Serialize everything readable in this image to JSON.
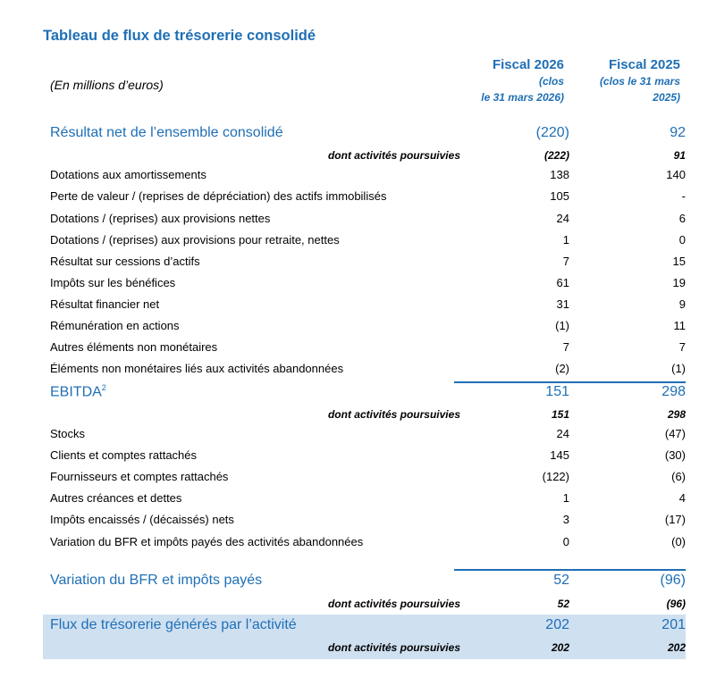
{
  "title": "Tableau de flux de trésorerie consolidé",
  "unit_note": "(En millions d’euros)",
  "columns": [
    {
      "year": "Fiscal 2026",
      "sub1": "(clos",
      "sub2": "le 31 mars 2026)"
    },
    {
      "year": "Fiscal 2025",
      "sub1": "(clos le 31 mars",
      "sub2": "2025)"
    }
  ],
  "rows": [
    {
      "label": "Résultat net de l’ensemble consolidé",
      "v1": "(220)",
      "v2": "92"
    },
    {
      "label": "dont activités poursuivies",
      "v1": "(222)",
      "v2": "91"
    },
    {
      "label": "Dotations aux amortissements",
      "v1": "138",
      "v2": "140"
    },
    {
      "label": "Perte de valeur / (reprises de dépréciation) des actifs immobilisés",
      "v1": "105",
      "v2": "-"
    },
    {
      "label": "Dotations / (reprises) aux provisions nettes",
      "v1": "24",
      "v2": "6"
    },
    {
      "label": "Dotations / (reprises) aux provisions pour retraite, nettes",
      "v1": "1",
      "v2": "0"
    },
    {
      "label": "Résultat sur cessions d’actifs",
      "v1": "7",
      "v2": "15"
    },
    {
      "label": "Impôts sur les bénéfices",
      "v1": "61",
      "v2": "19"
    },
    {
      "label": "Résultat financier net",
      "v1": "31",
      "v2": "9"
    },
    {
      "label": "Rémunération en actions",
      "v1": "(1)",
      "v2": "11"
    },
    {
      "label": "Autres éléments non monétaires",
      "v1": "7",
      "v2": "7"
    },
    {
      "label": "Éléments non monétaires liés aux activités abandonnées",
      "v1": "(2)",
      "v2": "(1)"
    },
    {
      "label": "EBITDA",
      "sup": "2",
      "v1": "151",
      "v2": "298"
    },
    {
      "label": "dont activités poursuivies",
      "v1": "151",
      "v2": "298"
    },
    {
      "label": "Stocks",
      "v1": "24",
      "v2": "(47)"
    },
    {
      "label": "Clients et comptes rattachés",
      "v1": "145",
      "v2": "(30)"
    },
    {
      "label": "Fournisseurs et comptes rattachés",
      "v1": "(122)",
      "v2": "(6)"
    },
    {
      "label": "Autres créances et dettes",
      "v1": "1",
      "v2": "4"
    },
    {
      "label": "Impôts encaissés / (décaissés) nets",
      "v1": "3",
      "v2": "(17)"
    },
    {
      "label": "Variation du BFR et impôts payés des activités abandonnées",
      "v1": "0",
      "v2": "(0)"
    },
    {
      "label": "Variation du BFR et impôts payés",
      "v1": "52",
      "v2": "(96)"
    },
    {
      "label": "dont activités poursuivies",
      "v1": "52",
      "v2": "(96)"
    },
    {
      "label": "Flux de trésorerie générés par l’activité",
      "v1": "202",
      "v2": "201"
    },
    {
      "label": "dont activités poursuivies",
      "v1": "202",
      "v2": "202"
    }
  ]
}
